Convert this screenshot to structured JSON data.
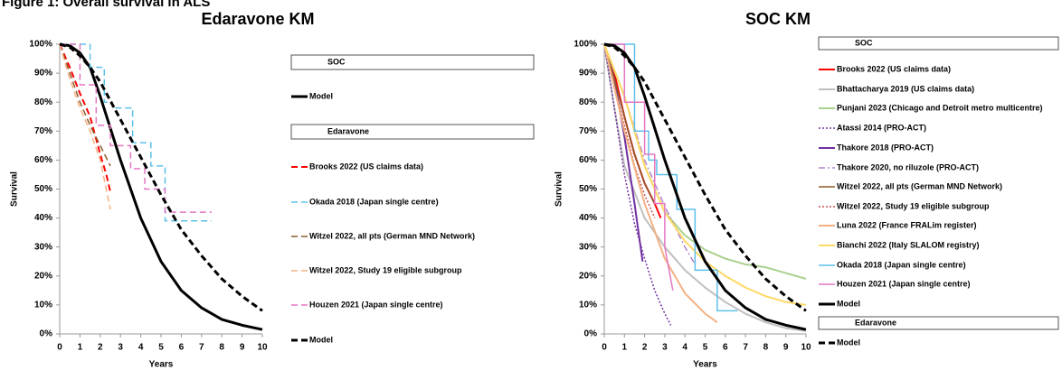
{
  "figure_title": "Figure 1: Overall survival in ALS",
  "chart_data": [
    {
      "type": "line",
      "title": "Edaravone KM",
      "xlabel": "Years",
      "ylabel": "Survival",
      "xlim": [
        0,
        10
      ],
      "ylim": [
        0,
        100
      ],
      "xticks": [
        0,
        1,
        2,
        3,
        4,
        5,
        6,
        7,
        8,
        9,
        10
      ],
      "yticks": [
        {
          "value": 0,
          "label": "0%"
        },
        {
          "value": 10,
          "label": "10%"
        },
        {
          "value": 20,
          "label": "20%"
        },
        {
          "value": 30,
          "label": "30%"
        },
        {
          "value": 40,
          "label": "40%"
        },
        {
          "value": 50,
          "label": "50%"
        },
        {
          "value": 60,
          "label": "60%"
        },
        {
          "value": 70,
          "label": "70%"
        },
        {
          "value": 80,
          "label": "80%"
        },
        {
          "value": 90,
          "label": "90%"
        },
        {
          "value": 100,
          "label": "100%"
        }
      ],
      "grid": false,
      "legend_groups": [
        {
          "name": "SOC",
          "series": [
            {
              "name": "Model",
              "color": "#000000",
              "dash": "solid",
              "width": 3,
              "x": [
                0,
                0.5,
                1,
                1.5,
                2,
                3,
                4,
                5,
                6,
                7,
                8,
                9,
                10
              ],
              "values": [
                100,
                99.5,
                97,
                92,
                82,
                60,
                40,
                25,
                15,
                9,
                5,
                3,
                1.5
              ]
            }
          ]
        },
        {
          "name": "Edaravone",
          "series": [
            {
              "name": "Brooks 2022 (US claims data)",
              "color": "#ff0000",
              "dash": "dashed",
              "width": 2,
              "x": [
                0,
                0.5,
                1,
                1.5,
                2,
                2.3,
                2.5
              ],
              "values": [
                100,
                92,
                83,
                75,
                62,
                55,
                49
              ]
            },
            {
              "name": "Okada 2018 (Japan single centre)",
              "color": "#5bc0eb",
              "dash": "dashed",
              "width": 1.5,
              "x": [
                0,
                1.5,
                1.5,
                2.2,
                2.2,
                2.6,
                2.6,
                3.6,
                3.6,
                4.5,
                4.5,
                5.2,
                5.2,
                7.5
              ],
              "values": [
                100,
                100,
                92,
                92,
                80,
                80,
                78,
                78,
                66,
                66,
                58,
                58,
                39,
                39
              ]
            },
            {
              "name": "Witzel 2022, all pts (German MND Network)",
              "color": "#8b5a2b",
              "dash": "dashed",
              "width": 1.5,
              "x": [
                0,
                0.5,
                1,
                1.5,
                2,
                2.5
              ],
              "values": [
                100,
                90,
                80,
                72,
                65,
                58
              ]
            },
            {
              "name": "Witzel 2022, Study 19 eligible subgroup",
              "color": "#f4b183",
              "dash": "dashed",
              "width": 1.5,
              "x": [
                0,
                0.5,
                1,
                1.5,
                2,
                2.5
              ],
              "values": [
                100,
                88,
                78,
                70,
                60,
                43
              ]
            },
            {
              "name": "Houzen 2021 (Japan single centre)",
              "color": "#e377c2",
              "dash": "dashed",
              "width": 1.5,
              "x": [
                0,
                1,
                1,
                1.8,
                1.8,
                2.5,
                2.5,
                3.5,
                3.5,
                4.2,
                4.2,
                5.2,
                5.2,
                7.5
              ],
              "values": [
                100,
                100,
                86,
                86,
                72,
                72,
                65,
                65,
                57,
                57,
                50,
                50,
                42,
                42
              ]
            },
            {
              "name": "Model",
              "color": "#000000",
              "dash": "dashed",
              "width": 3,
              "x": [
                0,
                0.5,
                1,
                1.5,
                2,
                3,
                4,
                5,
                6,
                7,
                8,
                9,
                10
              ],
              "values": [
                100,
                99,
                96,
                92,
                87,
                74,
                61,
                48,
                36,
                27,
                19,
                13,
                8
              ]
            }
          ]
        }
      ]
    },
    {
      "type": "line",
      "title": "SOC KM",
      "xlabel": "Years",
      "ylabel": "Survival",
      "xlim": [
        0,
        10
      ],
      "ylim": [
        0,
        100
      ],
      "xticks": [
        0,
        1,
        2,
        3,
        4,
        5,
        6,
        7,
        8,
        9,
        10
      ],
      "yticks": [
        {
          "value": 0,
          "label": "0%"
        },
        {
          "value": 10,
          "label": "10%"
        },
        {
          "value": 20,
          "label": "20%"
        },
        {
          "value": 30,
          "label": "30%"
        },
        {
          "value": 40,
          "label": "40%"
        },
        {
          "value": 50,
          "label": "50%"
        },
        {
          "value": 60,
          "label": "60%"
        },
        {
          "value": 70,
          "label": "70%"
        },
        {
          "value": 80,
          "label": "80%"
        },
        {
          "value": 90,
          "label": "90%"
        },
        {
          "value": 100,
          "label": "100%"
        }
      ],
      "grid": false,
      "legend_groups": [
        {
          "name": "SOC",
          "series": [
            {
              "name": "Brooks 2022 (US claims data)",
              "color": "#ff0000",
              "dash": "solid",
              "width": 2,
              "x": [
                0,
                0.5,
                1,
                1.5,
                2,
                2.5,
                2.8
              ],
              "values": [
                100,
                90,
                75,
                62,
                52,
                45,
                40
              ]
            },
            {
              "name": "Bhattacharya 2019 (US claims data)",
              "color": "#bfbfbf",
              "dash": "solid",
              "width": 2,
              "x": [
                0,
                0.5,
                1,
                2,
                3,
                4,
                5,
                6,
                7,
                8,
                9,
                10
              ],
              "values": [
                100,
                78,
                58,
                40,
                30,
                22,
                16,
                11,
                7,
                4,
                2,
                1
              ]
            },
            {
              "name": "Punjani 2023 (Chicago and Detroit metro multicentre)",
              "color": "#a9d18e",
              "dash": "solid",
              "width": 2,
              "x": [
                0,
                1,
                2,
                3,
                4,
                5,
                6,
                7,
                8,
                9,
                10
              ],
              "values": [
                100,
                82,
                58,
                42,
                34,
                29,
                26,
                24,
                23,
                21,
                19
              ]
            },
            {
              "name": "Atassi 2014 (PRO-ACT)",
              "color": "#7030a0",
              "dash": "dotted",
              "width": 1.5,
              "x": [
                0,
                0.5,
                1,
                1.5,
                2,
                2.5,
                3,
                3.3
              ],
              "values": [
                100,
                78,
                55,
                38,
                26,
                15,
                7,
                3
              ]
            },
            {
              "name": "Thakore 2018 (PRO-ACT)",
              "color": "#7030a0",
              "dash": "solid",
              "width": 2,
              "x": [
                0,
                0.5,
                1,
                1.5,
                1.9
              ],
              "values": [
                100,
                88,
                68,
                45,
                25
              ]
            },
            {
              "name": "Thakore 2020, no riluzole (PRO-ACT)",
              "color": "#b084cc",
              "dash": "dashdot",
              "width": 1.5,
              "x": [
                0,
                1,
                2,
                3,
                4,
                4.5
              ],
              "values": [
                100,
                82,
                60,
                44,
                30,
                24
              ]
            },
            {
              "name": "Witzel 2022, all pts (German MND Network)",
              "color": "#8b5a2b",
              "dash": "solid",
              "width": 1.5,
              "x": [
                0,
                0.5,
                1,
                1.5,
                2,
                2.5
              ],
              "values": [
                100,
                88,
                75,
                62,
                52,
                45
              ]
            },
            {
              "name": "Witzel 2022, Study 19 eligible subgroup",
              "color": "#c0504d",
              "dash": "dotted",
              "width": 1.5,
              "x": [
                0,
                0.5,
                1,
                1.5,
                2,
                2.5
              ],
              "values": [
                100,
                86,
                72,
                58,
                48,
                40
              ]
            },
            {
              "name": "Luna 2022 (France FRALim register)",
              "color": "#f4b183",
              "dash": "solid",
              "width": 2,
              "x": [
                0,
                1,
                2,
                3,
                4,
                5,
                5.6
              ],
              "values": [
                100,
                70,
                45,
                26,
                14,
                7,
                4
              ]
            },
            {
              "name": "Bianchi 2022 (Italy SLALOM registry)",
              "color": "#ffd966",
              "dash": "solid",
              "width": 2,
              "x": [
                0,
                1,
                2,
                3,
                4,
                5,
                6,
                7,
                8,
                9,
                10
              ],
              "values": [
                100,
                82,
                58,
                42,
                32,
                25,
                20,
                16,
                13,
                11,
                10
              ]
            },
            {
              "name": "Okada 2018 (Japan single centre)",
              "color": "#5bc0eb",
              "dash": "solid",
              "width": 1.5,
              "x": [
                0,
                1.5,
                1.5,
                2.2,
                2.2,
                2.6,
                2.6,
                3.6,
                3.6,
                4.5,
                4.5,
                5.6,
                5.6,
                6.6
              ],
              "values": [
                100,
                100,
                70,
                70,
                60,
                60,
                55,
                55,
                43,
                43,
                22,
                22,
                8,
                8
              ]
            },
            {
              "name": "Houzen 2021 (Japan single centre)",
              "color": "#e377c2",
              "dash": "solid",
              "width": 1.5,
              "x": [
                0,
                1,
                1,
                2,
                2,
                2.5,
                2.5,
                3,
                3,
                3.4
              ],
              "values": [
                100,
                100,
                80,
                80,
                62,
                62,
                45,
                45,
                30,
                15
              ]
            },
            {
              "name": "Model",
              "color": "#000000",
              "dash": "solid",
              "width": 3,
              "x": [
                0,
                0.5,
                1,
                1.5,
                2,
                3,
                4,
                5,
                6,
                7,
                8,
                9,
                10
              ],
              "values": [
                100,
                99.5,
                97,
                92,
                82,
                60,
                40,
                25,
                15,
                9,
                5,
                3,
                1.5
              ]
            }
          ]
        },
        {
          "name": "Edaravone",
          "series": [
            {
              "name": "Model",
              "color": "#000000",
              "dash": "dashed",
              "width": 3,
              "x": [
                0,
                0.5,
                1,
                1.5,
                2,
                3,
                4,
                5,
                6,
                7,
                8,
                9,
                10
              ],
              "values": [
                100,
                99,
                96,
                92,
                87,
                74,
                61,
                48,
                36,
                27,
                19,
                13,
                8
              ]
            }
          ]
        }
      ]
    }
  ]
}
